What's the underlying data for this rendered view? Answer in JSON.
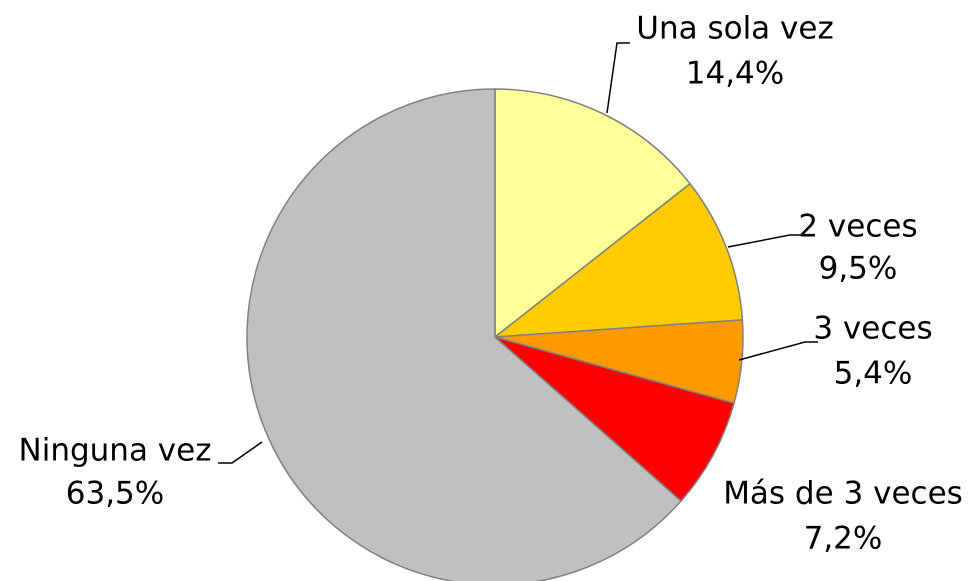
{
  "chart_data": {
    "type": "pie",
    "categories": [
      "Una sola vez",
      "2 veces",
      "3 veces",
      "Más de 3 veces",
      "Ninguna vez"
    ],
    "values": [
      14.4,
      9.5,
      5.4,
      7.2,
      63.5
    ],
    "value_labels": [
      "14,4%",
      "9,5%",
      "5,4%",
      "7,2%",
      "63,5%"
    ],
    "colors": [
      "#FFFF99",
      "#FFCC00",
      "#FF9900",
      "#FF0000",
      "#C0C0C0"
    ]
  }
}
